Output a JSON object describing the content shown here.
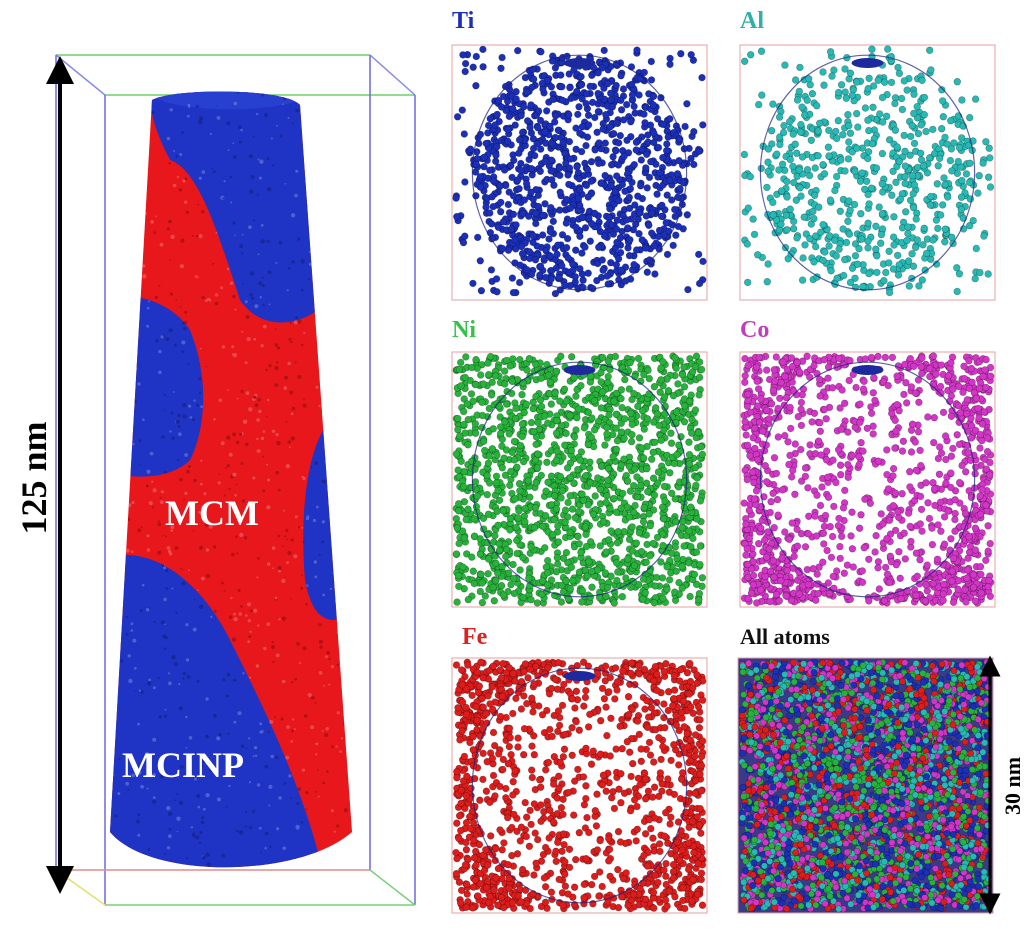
{
  "reconstruction": {
    "height_label": "125 nm",
    "phase_a": "MCM",
    "phase_b": "MCINP",
    "colors": {
      "phase_a": "#e8171b",
      "phase_b": "#1f33c4"
    }
  },
  "maps": [
    {
      "label": "Ti",
      "color": "#1b2fb8",
      "label_color": "#1b2fb8",
      "distribution": "inside",
      "count": 1100
    },
    {
      "label": "Al",
      "color": "#27b9b4",
      "label_color": "#2bb0aa",
      "distribution": "inside",
      "count": 650
    },
    {
      "label": "Ni",
      "color": "#27b33b",
      "label_color": "#36c24a",
      "distribution": "uniform",
      "count": 1600
    },
    {
      "label": "Co",
      "color": "#d335c7",
      "label_color": "#c23bc0",
      "distribution": "outside",
      "count": 1300
    },
    {
      "label": "Fe",
      "color": "#dd1c1c",
      "label_color": "#e02020",
      "distribution": "outside",
      "count": 1300
    },
    {
      "label": "All atoms",
      "color": "#222222",
      "label_color": "#111111",
      "distribution": "mixed",
      "count": 3200
    }
  ],
  "scale_label": "30 nm"
}
